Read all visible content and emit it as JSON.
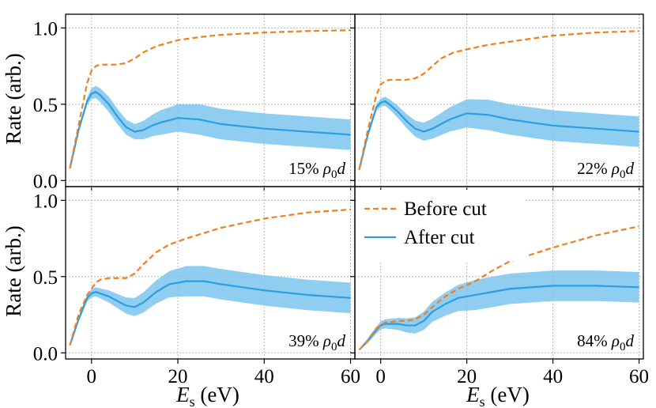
{
  "chart_data": {
    "type": "line",
    "shared_xlabel": "E_s (eV)",
    "shared_ylabel": "Rate (arb.)",
    "xlim": [
      -6,
      61
    ],
    "ylim": [
      -0.04,
      1.09
    ],
    "xticks": [
      0,
      20,
      40,
      60
    ],
    "yticks": [
      0.0,
      0.5,
      1.0
    ],
    "grid": true,
    "legend": {
      "location": "bottom-right panel, top-left",
      "entries": [
        {
          "name": "Before cut",
          "style": "dashed",
          "color": "#f07f1e"
        },
        {
          "name": "After cut",
          "style": "solid",
          "color": "#2a9ee0"
        }
      ]
    },
    "colors": {
      "before": "#f07f1e",
      "after": "#2a9ee0",
      "band": "#7cc5ee",
      "grid": "#b8b8b8"
    },
    "panels": [
      {
        "annotation": "15% ρ0d",
        "series": [
          {
            "name": "Before cut",
            "x": [
              -5,
              -3,
              -1,
              0,
              1,
              2,
              4,
              6,
              8,
              10,
              12,
              15,
              20,
              25,
              30,
              40,
              50,
              60
            ],
            "y": [
              0.08,
              0.36,
              0.64,
              0.72,
              0.75,
              0.76,
              0.76,
              0.76,
              0.77,
              0.8,
              0.84,
              0.88,
              0.92,
              0.94,
              0.955,
              0.97,
              0.98,
              0.985
            ]
          },
          {
            "name": "After cut",
            "x": [
              -5,
              -3,
              -1,
              0,
              1,
              2,
              4,
              6,
              8,
              10,
              12,
              14,
              16,
              20,
              25,
              30,
              40,
              50,
              60
            ],
            "y": [
              0.08,
              0.33,
              0.52,
              0.57,
              0.58,
              0.56,
              0.5,
              0.42,
              0.35,
              0.32,
              0.33,
              0.36,
              0.38,
              0.41,
              0.4,
              0.37,
              0.34,
              0.32,
              0.3
            ],
            "band_width": [
              0,
              0.01,
              0.025,
              0.035,
              0.04,
              0.045,
              0.05,
              0.05,
              0.05,
              0.05,
              0.06,
              0.07,
              0.08,
              0.09,
              0.1,
              0.1,
              0.1,
              0.1,
              0.1
            ]
          }
        ]
      },
      {
        "annotation": "22% ρ0d",
        "series": [
          {
            "name": "Before cut",
            "x": [
              -5,
              -3,
              -1,
              0,
              1,
              2,
              4,
              6,
              8,
              10,
              12,
              14,
              17,
              20,
              25,
              30,
              40,
              50,
              60
            ],
            "y": [
              0.07,
              0.33,
              0.56,
              0.63,
              0.65,
              0.66,
              0.66,
              0.66,
              0.67,
              0.7,
              0.75,
              0.8,
              0.84,
              0.86,
              0.89,
              0.91,
              0.95,
              0.97,
              0.98
            ]
          },
          {
            "name": "After cut",
            "x": [
              -5,
              -3,
              -1,
              0,
              1,
              2,
              4,
              6,
              8,
              10,
              12,
              14,
              16,
              20,
              25,
              30,
              40,
              50,
              60
            ],
            "y": [
              0.07,
              0.3,
              0.48,
              0.51,
              0.52,
              0.5,
              0.45,
              0.39,
              0.34,
              0.32,
              0.34,
              0.37,
              0.4,
              0.44,
              0.43,
              0.4,
              0.36,
              0.34,
              0.32
            ]
          }
        ]
      },
      {
        "annotation": "39% ρ0d",
        "series": [
          {
            "name": "Before cut",
            "x": [
              -5,
              -3,
              -1,
              0,
              1,
              2,
              4,
              6,
              8,
              10,
              12,
              15,
              18,
              22,
              30,
              40,
              50,
              60
            ],
            "y": [
              0.05,
              0.25,
              0.38,
              0.42,
              0.46,
              0.48,
              0.49,
              0.49,
              0.49,
              0.52,
              0.58,
              0.66,
              0.71,
              0.75,
              0.82,
              0.88,
              0.92,
              0.94
            ]
          },
          {
            "name": "After cut",
            "x": [
              -5,
              -3,
              -1,
              0,
              1,
              2,
              4,
              6,
              8,
              10,
              12,
              15,
              18,
              22,
              26,
              30,
              40,
              50,
              60
            ],
            "y": [
              0.05,
              0.22,
              0.36,
              0.39,
              0.4,
              0.39,
              0.37,
              0.34,
              0.31,
              0.3,
              0.33,
              0.4,
              0.45,
              0.47,
              0.47,
              0.45,
              0.41,
              0.38,
              0.36
            ]
          }
        ]
      },
      {
        "annotation": "84% ρ0d",
        "series": [
          {
            "name": "Before cut",
            "x": [
              -5,
              -3,
              -1,
              0,
              1,
              2,
              4,
              6,
              8,
              10,
              12,
              15,
              18,
              22,
              26,
              30,
              40,
              50,
              60
            ],
            "y": [
              0.02,
              0.08,
              0.16,
              0.18,
              0.2,
              0.2,
              0.21,
              0.21,
              0.22,
              0.25,
              0.3,
              0.37,
              0.42,
              0.47,
              0.54,
              0.6,
              0.69,
              0.77,
              0.83
            ]
          },
          {
            "name": "After cut",
            "x": [
              -5,
              -3,
              -1,
              0,
              1,
              2,
              4,
              6,
              8,
              10,
              12,
              15,
              18,
              22,
              26,
              30,
              40,
              50,
              60
            ],
            "y": [
              0.02,
              0.08,
              0.15,
              0.18,
              0.19,
              0.19,
              0.19,
              0.18,
              0.18,
              0.21,
              0.27,
              0.32,
              0.36,
              0.38,
              0.4,
              0.42,
              0.44,
              0.44,
              0.43
            ]
          }
        ]
      }
    ]
  }
}
